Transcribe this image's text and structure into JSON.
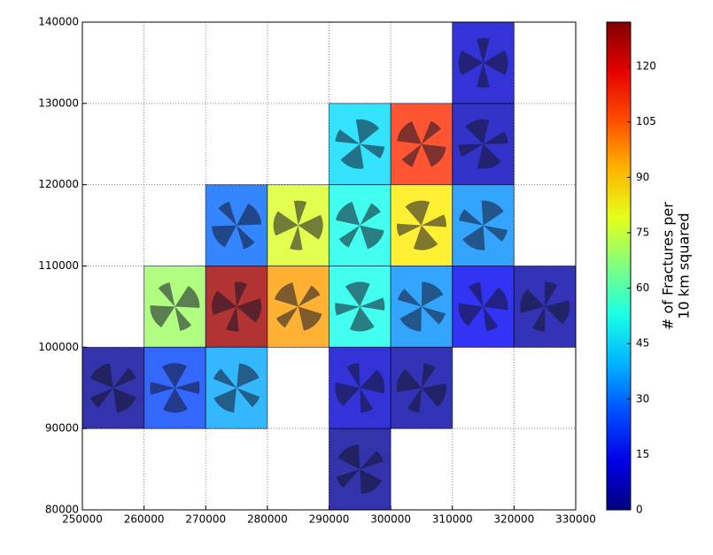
{
  "chart_data": {
    "type": "heatmap",
    "x": [
      310000,
      300000,
      310000,
      290000,
      270000,
      280000,
      290000,
      300000,
      310000,
      260000,
      270000,
      280000,
      290000,
      300000,
      310000,
      320000,
      250000,
      260000,
      270000,
      290000,
      300000,
      290000
    ],
    "y": [
      130000,
      120000,
      120000,
      120000,
      110000,
      110000,
      110000,
      110000,
      110000,
      100000,
      100000,
      100000,
      100000,
      100000,
      100000,
      100000,
      90000,
      90000,
      90000,
      90000,
      90000,
      80000
    ],
    "values": [
      10,
      110,
      8,
      45,
      30,
      78,
      52,
      85,
      35,
      70,
      128,
      95,
      52,
      35,
      15,
      5,
      3,
      25,
      38,
      10,
      5,
      3
    ],
    "cell_size": 10000,
    "colormap": "jet",
    "xlim": [
      250000,
      330000
    ],
    "xticks": [
      250000,
      260000,
      270000,
      280000,
      290000,
      300000,
      310000,
      320000,
      330000
    ],
    "ylim": [
      80000,
      140000
    ],
    "yticks": [
      80000,
      90000,
      100000,
      110000,
      120000,
      130000,
      140000
    ],
    "clim": [
      0,
      132
    ],
    "cticks": [
      0,
      15,
      30,
      45,
      60,
      75,
      90,
      105,
      120
    ],
    "colorbar_label": [
      "# of Fractures per",
      "10 km squared"
    ],
    "grid": true
  }
}
